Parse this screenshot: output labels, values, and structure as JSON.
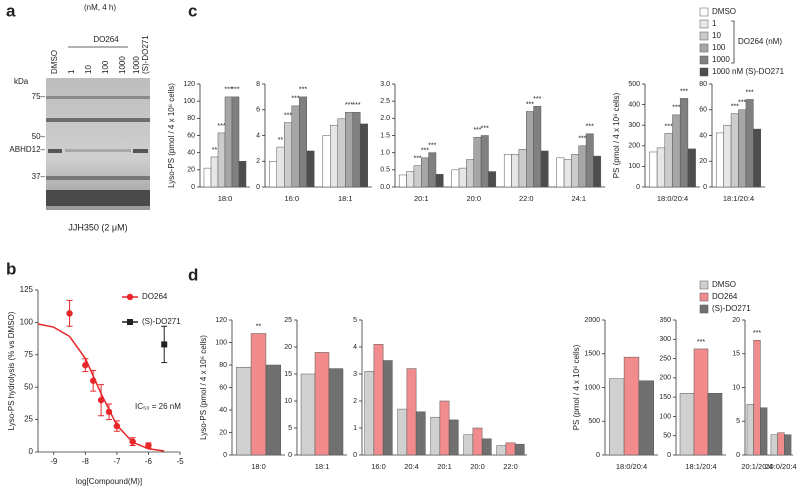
{
  "panels": [
    "a",
    "b",
    "c",
    "d"
  ],
  "gel": {
    "condition": "(nM, 4 h)",
    "lanes": [
      "DMSO",
      "1",
      "10",
      "100",
      "1000",
      "1000"
    ],
    "group": "DO264",
    "control": "(S)-DO271",
    "unit": "kDa",
    "markers": [
      "75–",
      "50–",
      "ABHD12–",
      "37–"
    ],
    "caption": "JJH350 (2 μM)"
  },
  "chart_data": [
    {
      "type": "scatter",
      "xlabel": "log[Compound(M)]",
      "ylabel": "Lyso-PS hydrolysis (% vs DMSO)",
      "xlim": [
        -9.5,
        -5
      ],
      "xticks": [
        -9,
        -8,
        -7,
        -6,
        -5
      ],
      "ylim": [
        0,
        125
      ],
      "yticks": [
        0,
        25,
        50,
        75,
        100,
        125
      ],
      "annotations": [
        "IC₅₀ = 26 nM"
      ],
      "series": [
        {
          "name": "DO264",
          "color": "#e8262a",
          "marker": "circle",
          "x": [
            -8.5,
            -8,
            -7.75,
            -7.5,
            -7.25,
            -7,
            -6.5,
            -6
          ],
          "values": [
            107,
            67,
            55,
            40,
            31,
            20,
            8,
            5
          ],
          "errors": [
            10,
            5,
            8,
            12,
            6,
            4,
            3,
            2
          ]
        },
        {
          "name": "(S)-DO271",
          "color": "#222222",
          "marker": "square",
          "x": [
            -5.5
          ],
          "values": [
            83
          ],
          "errors": [
            14
          ]
        },
        {
          "type": "line",
          "color": "#e8262a",
          "x": [
            -9.5,
            -9,
            -8.5,
            -8,
            -7.5,
            -7,
            -6.5,
            -6,
            -5.5
          ],
          "values": [
            98.8,
            96.3,
            89.2,
            72.2,
            45.1,
            20.6,
            7.6,
            2.5,
            0.8
          ]
        }
      ]
    },
    {
      "type": "bar",
      "legend_bracket": "DO264 (nM)",
      "legend": "top-right",
      "series": [
        {
          "name": "DMSO",
          "color": "#ffffff"
        },
        {
          "name": "1",
          "color": "#e6e6e6"
        },
        {
          "name": "10",
          "color": "#cccccc"
        },
        {
          "name": "100",
          "color": "#a6a6a6"
        },
        {
          "name": "1000",
          "color": "#808080"
        },
        {
          "name": "1000 nM (S)-DO271",
          "color": "#4d4d4d"
        }
      ],
      "subplots": [
        {
          "ylabel": "Lyso-PS (pmol / 4 x 10⁶ cells)",
          "categories": [
            "18:0"
          ],
          "ylim": [
            0,
            120
          ],
          "yticks": [
            0,
            20,
            40,
            60,
            80,
            100,
            120
          ],
          "values": [
            [
              22
            ],
            [
              35
            ],
            [
              63
            ],
            [
              105
            ],
            [
              105
            ],
            [
              30
            ]
          ],
          "stars": [
            [
              null
            ],
            [
              "**"
            ],
            [
              "***"
            ],
            [
              "***"
            ],
            [
              "***"
            ],
            [
              null
            ]
          ]
        },
        {
          "categories": [
            "16:0",
            "18:1"
          ],
          "ylim": [
            0,
            8
          ],
          "yticks": [
            0,
            2,
            4,
            6,
            8
          ],
          "values": [
            [
              2.0,
              4.0
            ],
            [
              3.1,
              4.8
            ],
            [
              5.0,
              5.3
            ],
            [
              6.3,
              5.8
            ],
            [
              7.0,
              5.8
            ],
            [
              2.8,
              4.9
            ]
          ],
          "stars": [
            [
              null,
              null
            ],
            [
              "**",
              null
            ],
            [
              "***",
              null
            ],
            [
              "***",
              "***"
            ],
            [
              "***",
              "***"
            ],
            [
              null,
              null
            ]
          ]
        },
        {
          "categories": [
            "20:1",
            "20:0",
            "22:0",
            "24:1"
          ],
          "ylim": [
            0,
            3
          ],
          "yticks": [
            {
              "value": 0,
              "label": "0.0"
            },
            0.5,
            {
              "value": 1,
              "label": "1.0"
            },
            1.5,
            {
              "value": 2,
              "label": "2.0"
            },
            2.5,
            {
              "value": 3,
              "label": "3.0"
            }
          ],
          "values": [
            [
              0.35,
              0.5,
              0.95,
              0.85
            ],
            [
              0.45,
              0.55,
              0.95,
              0.8
            ],
            [
              0.62,
              0.8,
              1.1,
              0.95
            ],
            [
              0.85,
              1.45,
              2.2,
              1.2
            ],
            [
              1.0,
              1.5,
              2.35,
              1.55
            ],
            [
              0.37,
              0.45,
              1.05,
              0.9
            ]
          ],
          "stars": [
            [
              null,
              null,
              null,
              null
            ],
            [
              null,
              null,
              null,
              null
            ],
            [
              "***",
              null,
              null,
              null
            ],
            [
              "***",
              "***",
              "***",
              "***"
            ],
            [
              "***",
              "***",
              "***",
              "***"
            ],
            [
              null,
              null,
              null,
              null
            ]
          ]
        },
        {
          "ylabel": "PS (pmol / 4 x 10⁶ cells)",
          "categories": [
            "18:0/20:4"
          ],
          "ylim": [
            0,
            500
          ],
          "yticks": [
            0,
            100,
            200,
            300,
            400,
            500
          ],
          "values": [
            [
              170
            ],
            [
              190
            ],
            [
              260
            ],
            [
              350
            ],
            [
              430
            ],
            [
              185
            ]
          ],
          "stars": [
            [
              null
            ],
            [
              null
            ],
            [
              "***"
            ],
            [
              "***"
            ],
            [
              "***"
            ],
            [
              null
            ]
          ]
        },
        {
          "categories": [
            "18:1/20:4"
          ],
          "ylim": [
            0,
            80
          ],
          "yticks": [
            0,
            20,
            40,
            60,
            80
          ],
          "values": [
            [
              42
            ],
            [
              48
            ],
            [
              57
            ],
            [
              60
            ],
            [
              68
            ],
            [
              45
            ]
          ],
          "stars": [
            [
              null
            ],
            [
              null
            ],
            [
              "***"
            ],
            [
              "***"
            ],
            [
              "***"
            ],
            [
              null
            ]
          ]
        }
      ]
    },
    {
      "type": "bar",
      "legend": "top-right",
      "series": [
        {
          "name": "DMSO",
          "color": "#d0d0d0"
        },
        {
          "name": "DO264",
          "color": "#f28b8b"
        },
        {
          "name": "(S)-DO271",
          "color": "#707070"
        }
      ],
      "subplots": [
        {
          "ylabel": "Lyso-PS (pmol / 4 x 10⁶ cells)",
          "categories": [
            "18:0"
          ],
          "ylim": [
            0,
            120
          ],
          "yticks": [
            0,
            20,
            40,
            60,
            80,
            100,
            120
          ],
          "values": [
            [
              78
            ],
            [
              108
            ],
            [
              80
            ]
          ],
          "stars": [
            [
              null
            ],
            [
              "**"
            ],
            [
              null
            ]
          ]
        },
        {
          "categories": [
            "18:1"
          ],
          "ylim": [
            0,
            25
          ],
          "yticks": [
            0,
            5,
            10,
            15,
            20,
            25
          ],
          "values": [
            [
              15
            ],
            [
              19
            ],
            [
              16
            ]
          ]
        },
        {
          "categories": [
            "16:0",
            "20:4",
            "20:1",
            "20:0",
            "22:0"
          ],
          "ylim": [
            0,
            5
          ],
          "yticks": [
            0,
            1,
            2,
            3,
            4,
            5
          ],
          "values": [
            [
              3.1,
              1.7,
              1.4,
              0.75,
              0.35
            ],
            [
              4.1,
              3.2,
              2.0,
              1.0,
              0.45
            ],
            [
              3.5,
              1.6,
              1.3,
              0.6,
              0.4
            ]
          ]
        },
        {
          "ylabel": "PS (pmol / 4 x 10⁶ cells)",
          "categories": [
            "18:0/20:4"
          ],
          "ylim": [
            0,
            2000
          ],
          "yticks": [
            0,
            500,
            1000,
            1500,
            2000
          ],
          "values": [
            [
              1130
            ],
            [
              1450
            ],
            [
              1100
            ]
          ]
        },
        {
          "categories": [
            "18:1/20:4"
          ],
          "ylim": [
            0,
            350
          ],
          "yticks": [
            0,
            50,
            100,
            150,
            200,
            250,
            300,
            350
          ],
          "values": [
            [
              160
            ],
            [
              275
            ],
            [
              160
            ]
          ],
          "stars": [
            [
              null
            ],
            [
              "***"
            ],
            [
              null
            ]
          ]
        },
        {
          "categories": [
            "20:1/20:4",
            "20:0/20:4"
          ],
          "ylim": [
            0,
            20
          ],
          "yticks": [
            0,
            5,
            10,
            15,
            20
          ],
          "values": [
            [
              7.5,
              3.0
            ],
            [
              17,
              3.3
            ],
            [
              7,
              3.0
            ]
          ],
          "stars": [
            [
              null,
              null
            ],
            [
              "***",
              null
            ],
            [
              null,
              null
            ]
          ]
        }
      ]
    }
  ]
}
